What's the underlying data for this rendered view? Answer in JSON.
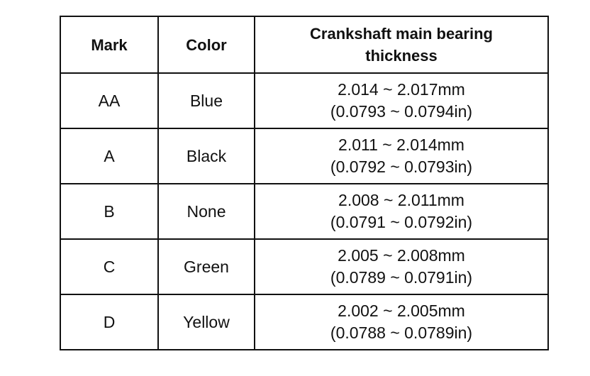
{
  "table": {
    "header": [
      "Mark",
      "Color",
      "Crankshaft main bearing thickness"
    ],
    "rows": [
      [
        "AA",
        "Blue",
        [
          "2.014 ~ 2.017mm",
          "(0.0793 ~ 0.0794in)"
        ]
      ],
      [
        "A",
        "Black",
        [
          "2.011 ~ 2.014mm",
          "(0.0792 ~ 0.0793in)"
        ]
      ],
      [
        "B",
        "None",
        [
          "2.008 ~ 2.011mm",
          "(0.0791 ~ 0.0792in)"
        ]
      ],
      [
        "C",
        "Green",
        [
          "2.005 ~ 2.008mm",
          "(0.0789 ~ 0.0791in)"
        ]
      ],
      [
        "D",
        "Yellow",
        [
          "2.002 ~ 2.005mm",
          "(0.0788 ~ 0.0789in)"
        ]
      ]
    ]
  }
}
